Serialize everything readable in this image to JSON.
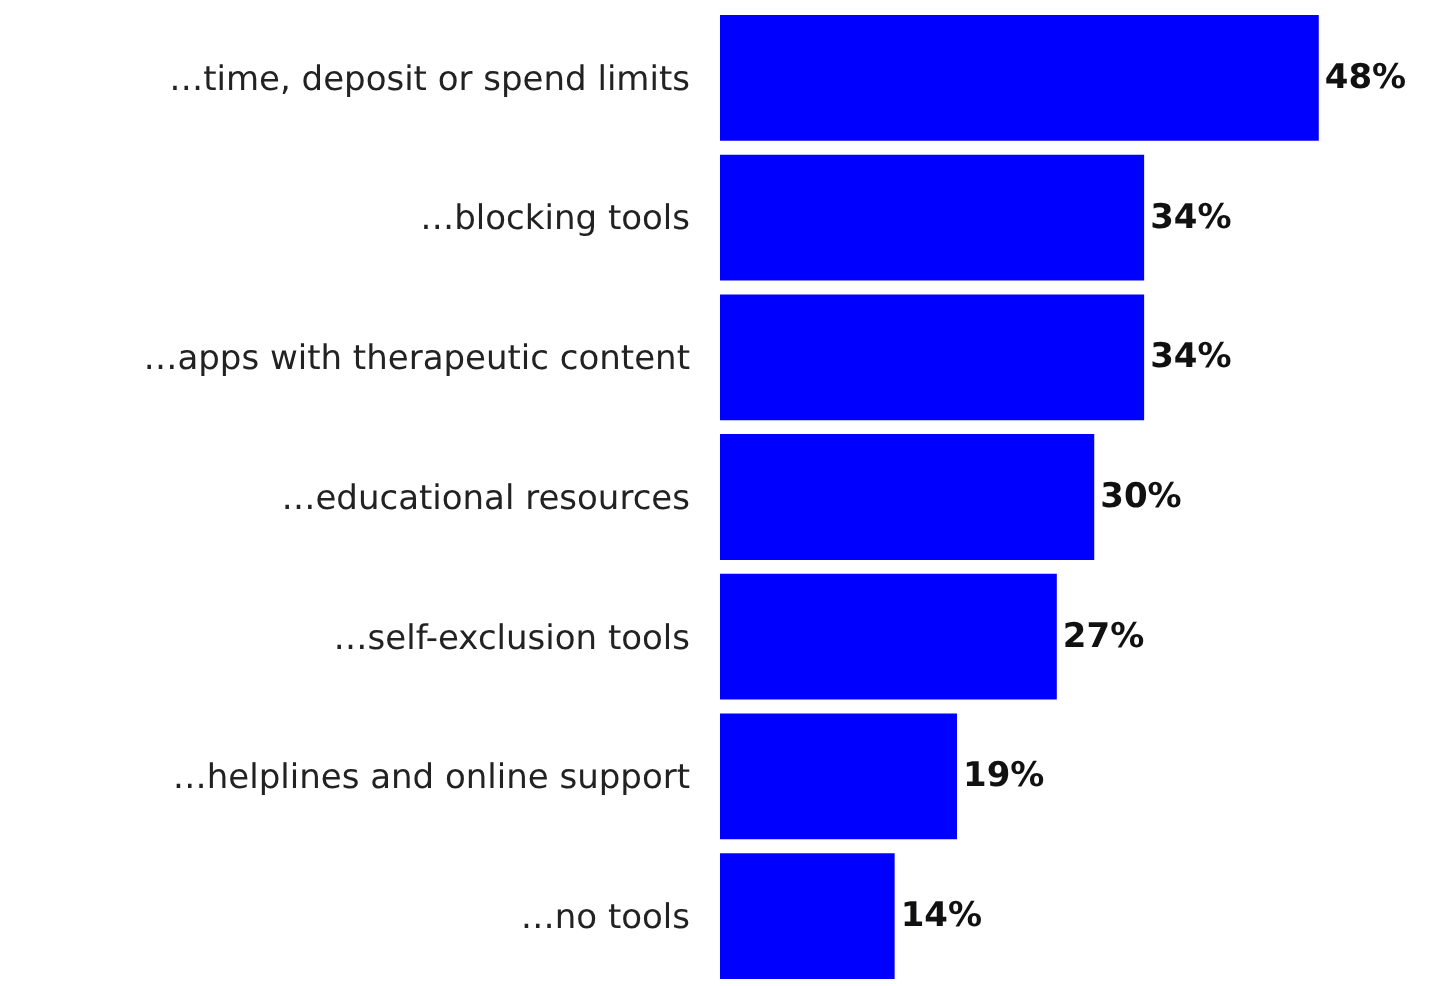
{
  "chart_data": {
    "type": "bar",
    "orientation": "horizontal",
    "categories": [
      "…time, deposit or spend limits",
      "…blocking tools",
      "…apps with therapeutic content",
      "…educational resources",
      "…self-exclusion tools",
      "…helplines and online support",
      "…no tools"
    ],
    "values": [
      48,
      34,
      34,
      30,
      27,
      19,
      14
    ],
    "value_labels": [
      "48%",
      "34%",
      "34%",
      "30%",
      "27%",
      "19%",
      "14%"
    ],
    "color": "#0000ff",
    "xlim": [
      0,
      59
    ],
    "tick_labels": "y",
    "legend": false
  }
}
